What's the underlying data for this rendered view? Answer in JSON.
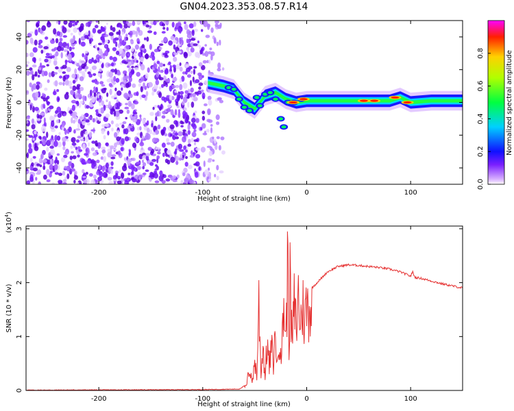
{
  "title": "GN04.2023.353.08.57.R14",
  "chart_data": [
    {
      "type": "heatmap",
      "xlabel": "Height of straight line (km)",
      "ylabel": "Frequency (Hz)",
      "xlim": [
        -270,
        150
      ],
      "ylim": [
        -50,
        50
      ],
      "xticks": [
        -200,
        -100,
        0,
        100
      ],
      "yticks": [
        -40,
        -20,
        0,
        20,
        40
      ],
      "colorbar": {
        "label": "Normalized spectral amplitude",
        "range": [
          0,
          1
        ],
        "ticks": [
          "0.0",
          "0.2",
          "0.4",
          "0.6",
          "0.8"
        ]
      },
      "ridge": {
        "description_points_x": [
          -95,
          -80,
          -70,
          -60,
          -50,
          -40,
          -30,
          -20,
          -10,
          0,
          20,
          40,
          60,
          80,
          90,
          100,
          120,
          150
        ],
        "center_hz": [
          12,
          10,
          8,
          0,
          -4,
          4,
          6,
          2,
          0,
          1,
          1,
          1,
          1,
          1,
          3,
          0,
          1,
          1
        ]
      }
    },
    {
      "type": "line",
      "xlabel": "Height of straight line (km)",
      "ylabel": "SNR (10 * v/v)",
      "multiplier": "(x10^4)",
      "multiplier_base": "(x10",
      "multiplier_exp": "4",
      "multiplier_close": ")",
      "xlim": [
        -270,
        150
      ],
      "ylim": [
        0,
        3.05
      ],
      "xticks": [
        -200,
        -100,
        0,
        100
      ],
      "yticks": [
        0,
        1,
        2,
        3
      ],
      "color": "#e53030",
      "series": [
        {
          "x": [
            -270,
            -100,
            -65,
            -58,
            -55,
            -52,
            -50,
            -48,
            -46,
            -44,
            -42,
            -40,
            -38,
            -36,
            -34,
            -32,
            -30,
            -28,
            -26,
            -24,
            -22,
            -20,
            -18,
            -17,
            -16,
            -14,
            -12,
            -10,
            -8,
            -6,
            -4,
            -2,
            0,
            5,
            10,
            15,
            20,
            25,
            30,
            40,
            50,
            60,
            70,
            80,
            90,
            100,
            102,
            104,
            110,
            120,
            130,
            140,
            150
          ],
          "y": [
            0.0,
            0.01,
            0.02,
            0.1,
            0.5,
            0.2,
            0.7,
            0.3,
            1.95,
            0.4,
            1.0,
            0.3,
            1.1,
            0.5,
            1.0,
            0.6,
            1.3,
            0.5,
            1.4,
            0.8,
            2.0,
            1.1,
            3.05,
            1.2,
            2.3,
            1.0,
            1.9,
            1.4,
            2.1,
            1.5,
            1.9,
            1.6,
            1.9,
            1.9,
            2.0,
            2.1,
            2.2,
            2.25,
            2.3,
            2.33,
            2.32,
            2.3,
            2.28,
            2.25,
            2.2,
            2.12,
            2.2,
            2.1,
            2.08,
            2.03,
            1.98,
            1.94,
            1.9
          ]
        }
      ]
    }
  ]
}
